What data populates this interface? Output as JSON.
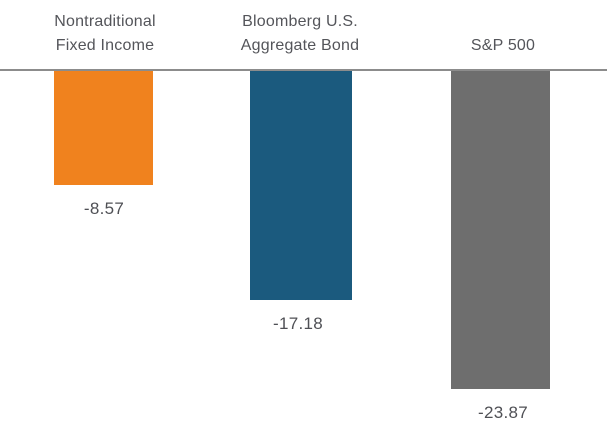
{
  "chart_data": {
    "type": "bar",
    "orientation": "vertical",
    "title": "",
    "xlabel": "",
    "ylabel": "",
    "categories": [
      "Nontraditional Fixed Income",
      "Bloomberg U.S. Aggregate Bond",
      "S&P 500"
    ],
    "category_label_lines": [
      [
        "Nontraditional",
        "Fixed Income"
      ],
      [
        "Bloomberg U.S.",
        "Aggregate Bond"
      ],
      [
        "S&P 500"
      ]
    ],
    "values": [
      -8.57,
      -17.18,
      -23.87
    ],
    "value_labels": [
      "-8.57",
      "-17.18",
      "-23.87"
    ],
    "bar_colors": [
      "#F0821E",
      "#1B5A7E",
      "#6E6E6E"
    ],
    "baseline": 0,
    "ylim": [
      -25,
      0
    ],
    "grid": false,
    "legend": "none",
    "axis_line_color": "#8C8C8C",
    "category_label_color": "#54555A",
    "value_label_color": "#4F5055",
    "background_color": "#FFFFFF"
  }
}
